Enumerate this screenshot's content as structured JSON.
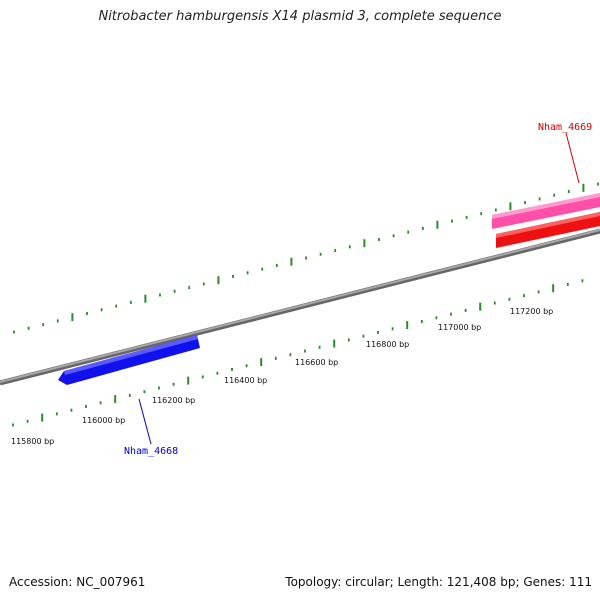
{
  "title": "Nitrobacter hamburgensis X14 plasmid 3, complete sequence",
  "footer": {
    "accession": "Accession: NC_007961",
    "summary": "Topology: circular; Length: 121,408 bp; Genes: 111"
  },
  "colors": {
    "backbone": "#8c8c8c",
    "tick": "#2a8a2a",
    "forward_gene_top": "#ff66b3",
    "forward_gene_bottom": "#ff2b2b",
    "reverse_gene": "#1a1aff",
    "label_forward": "#cc0000",
    "label_reverse": "#0000cc"
  },
  "scale_labels": [
    "115800 bp",
    "116000 bp",
    "116200 bp",
    "116400 bp",
    "116600 bp",
    "116800 bp",
    "117000 bp",
    "117200 bp"
  ],
  "genes": [
    {
      "name": "Nham_4668",
      "strand": "reverse"
    },
    {
      "name": "Nham_4669",
      "strand": "forward"
    }
  ]
}
